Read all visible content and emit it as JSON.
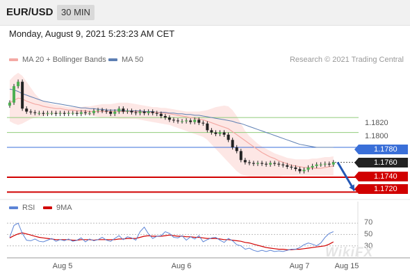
{
  "header": {
    "symbol": "EUR/USD",
    "timeframe": "30 MIN"
  },
  "datetime": "Monday, August 9, 2021 5:23:23 AM CET",
  "copyright": "Research © 2021 Trading Central",
  "colors": {
    "ma20": "#f4a9a4",
    "band": "#fde3e1",
    "ma50": "#5d7fb3",
    "resistance": "#8fcc7a",
    "pivot": "#3a6fd8",
    "support": "#d10000",
    "candle": "#222222",
    "rsi": "#5c84d6",
    "rsi_ma": "#d10000"
  },
  "watermark": "WikiFX",
  "chart_data": [
    {
      "type": "candlestick",
      "title": "",
      "legend": [
        "MA 20 + Bollinger Bands",
        "MA 50"
      ],
      "legend_position": "top-left",
      "x_ticks": [
        "Aug 5",
        "Aug 6",
        "Aug 7",
        "Aug 15"
      ],
      "levels": [
        {
          "value": 1.182,
          "label": "1.1820",
          "kind": "resistance"
        },
        {
          "value": 1.18,
          "label": "1.1800",
          "kind": "resistance"
        },
        {
          "value": 1.178,
          "label": "1.1780",
          "kind": "pivot"
        },
        {
          "value": 1.176,
          "label": "1.1760",
          "kind": "last"
        },
        {
          "value": 1.174,
          "label": "1.1740",
          "kind": "support"
        },
        {
          "value": 1.172,
          "label": "1.1720",
          "kind": "support"
        }
      ],
      "ylim": [
        1.1712,
        1.189
      ],
      "close": [
        1.184,
        1.1862,
        1.1868,
        1.1832,
        1.1828,
        1.1827,
        1.1826,
        1.1826,
        1.1825,
        1.1826,
        1.1826,
        1.1825,
        1.1826,
        1.1825,
        1.1826,
        1.1826,
        1.1825,
        1.1827,
        1.1826,
        1.1826,
        1.1829,
        1.183,
        1.1829,
        1.1828,
        1.1825,
        1.1828,
        1.1832,
        1.1828,
        1.1829,
        1.1827,
        1.1826,
        1.1828,
        1.1826,
        1.1828,
        1.1826,
        1.1825,
        1.1822,
        1.182,
        1.1817,
        1.1816,
        1.1815,
        1.1815,
        1.1816,
        1.1814,
        1.1817,
        1.1813,
        1.1812,
        1.1803,
        1.18,
        1.1798,
        1.18,
        1.1797,
        1.179,
        1.178,
        1.1775,
        1.1763,
        1.176,
        1.1759,
        1.1758,
        1.1759,
        1.1758,
        1.1757,
        1.1759,
        1.1758,
        1.1757,
        1.1756,
        1.1754,
        1.1753,
        1.1751,
        1.1748,
        1.175,
        1.1753,
        1.1755,
        1.1757,
        1.1757,
        1.1758,
        1.1757,
        1.176
      ],
      "ma20": [
        1.184,
        1.1843,
        1.1846,
        1.1845,
        1.1842,
        1.184,
        1.1838,
        1.1837,
        1.1835,
        1.1834,
        1.1833,
        1.1832,
        1.1832,
        1.1831,
        1.183,
        1.183,
        1.1829,
        1.1829,
        1.1829,
        1.1828,
        1.1828,
        1.1828,
        1.1828,
        1.1828,
        1.1828,
        1.1828,
        1.1828,
        1.1828,
        1.1828,
        1.1828,
        1.1828,
        1.1828,
        1.1827,
        1.1827,
        1.1827,
        1.1827,
        1.1826,
        1.1826,
        1.1825,
        1.1824,
        1.1823,
        1.1822,
        1.1821,
        1.182,
        1.1819,
        1.1818,
        1.1817,
        1.1815,
        1.1813,
        1.1811,
        1.1809,
        1.1807,
        1.1805,
        1.1801,
        1.1797,
        1.1793,
        1.1789,
        1.1785,
        1.1781,
        1.1777,
        1.1773,
        1.177,
        1.1767,
        1.1765,
        1.1762,
        1.176,
        1.1758,
        1.1756,
        1.1755,
        1.1754,
        1.1753,
        1.1753,
        1.1752,
        1.1752,
        1.1752,
        1.1753,
        1.1754,
        1.1755
      ],
      "ma50": [
        1.1858,
        1.1857,
        1.1855,
        1.1852,
        1.185,
        1.1848,
        1.1846,
        1.1844,
        1.1842,
        1.1841,
        1.184,
        1.1839,
        1.1838,
        1.1837,
        1.1836,
        1.1835,
        1.1834,
        1.1833,
        1.1833,
        1.1832,
        1.1832,
        1.1831,
        1.1831,
        1.183,
        1.183,
        1.183,
        1.183,
        1.1829,
        1.1829,
        1.1829,
        1.1829,
        1.1829,
        1.1828,
        1.1828,
        1.1828,
        1.1827,
        1.1827,
        1.1827,
        1.1826,
        1.1826,
        1.1825,
        1.1825,
        1.1824,
        1.1824,
        1.1823,
        1.1823,
        1.1822,
        1.1821,
        1.182,
        1.1819,
        1.1818,
        1.1817,
        1.1816,
        1.1815,
        1.1813,
        1.1812,
        1.181,
        1.1808,
        1.1806,
        1.1804,
        1.1802,
        1.18,
        1.1798,
        1.1796,
        1.1794,
        1.1792,
        1.179,
        1.1788,
        1.1786,
        1.1784,
        1.1783,
        1.1782,
        1.1781,
        1.178,
        1.178,
        1.178,
        1.178,
        1.178
      ],
      "band_upper": [
        1.187,
        1.1876,
        1.188,
        1.1876,
        1.1868,
        1.186,
        1.1852,
        1.1846,
        1.1842,
        1.184,
        1.1838,
        1.1837,
        1.1836,
        1.1835,
        1.1834,
        1.1834,
        1.1834,
        1.1834,
        1.1835,
        1.1835,
        1.1836,
        1.1837,
        1.1838,
        1.1838,
        1.1838,
        1.1839,
        1.184,
        1.184,
        1.184,
        1.1839,
        1.1838,
        1.1837,
        1.1836,
        1.1835,
        1.1834,
        1.1834,
        1.1833,
        1.1833,
        1.1832,
        1.1831,
        1.183,
        1.1829,
        1.1828,
        1.1828,
        1.1828,
        1.1828,
        1.1829,
        1.183,
        1.1832,
        1.1834,
        1.1835,
        1.1836,
        1.1835,
        1.183,
        1.1822,
        1.1812,
        1.1802,
        1.1795,
        1.179,
        1.1785,
        1.1781,
        1.1778,
        1.1775,
        1.1772,
        1.177,
        1.1768,
        1.1766,
        1.1765,
        1.1764,
        1.1764,
        1.1764,
        1.1764,
        1.1765,
        1.1765,
        1.1766,
        1.1767,
        1.1767,
        1.1768
      ],
      "band_lower": [
        1.1815,
        1.1812,
        1.181,
        1.1812,
        1.1815,
        1.1818,
        1.182,
        1.1821,
        1.1822,
        1.1823,
        1.1824,
        1.1825,
        1.1825,
        1.1825,
        1.1825,
        1.1825,
        1.1825,
        1.1824,
        1.1824,
        1.1823,
        1.1822,
        1.1821,
        1.182,
        1.182,
        1.1819,
        1.1819,
        1.1818,
        1.1818,
        1.1818,
        1.1818,
        1.1818,
        1.1817,
        1.1816,
        1.1815,
        1.1814,
        1.1813,
        1.1812,
        1.1811,
        1.181,
        1.1808,
        1.1806,
        1.1804,
        1.1802,
        1.18,
        1.1798,
        1.1796,
        1.1794,
        1.179,
        1.1784,
        1.1778,
        1.1772,
        1.1766,
        1.176,
        1.1754,
        1.1748,
        1.1744,
        1.1742,
        1.1741,
        1.174,
        1.174,
        1.174,
        1.174,
        1.174,
        1.1741,
        1.1741,
        1.1742,
        1.1742,
        1.1742,
        1.1742,
        1.1742,
        1.1742,
        1.1742,
        1.1742,
        1.1742,
        1.1742,
        1.1742,
        1.1742,
        1.1742
      ],
      "forecast_arrow": {
        "from": 1.176,
        "to": 1.1722
      }
    },
    {
      "type": "line",
      "title": "",
      "legend": [
        "RSI",
        "9MA"
      ],
      "legend_position": "top-left",
      "y_ticks": [
        70,
        50,
        30
      ],
      "ylim": [
        10,
        80
      ],
      "rsi": [
        45,
        66,
        70,
        52,
        40,
        39,
        42,
        38,
        37,
        40,
        43,
        38,
        41,
        39,
        42,
        38,
        40,
        44,
        37,
        42,
        39,
        41,
        45,
        40,
        38,
        43,
        48,
        41,
        46,
        44,
        40,
        55,
        63,
        51,
        43,
        47,
        48,
        55,
        52,
        45,
        44,
        48,
        40,
        46,
        42,
        48,
        37,
        41,
        44,
        45,
        40,
        36,
        43,
        39,
        32,
        30,
        24,
        26,
        22,
        20,
        22,
        20,
        22,
        20,
        21,
        20,
        22,
        24,
        24,
        27,
        32,
        35,
        33,
        30,
        35,
        45,
        52,
        55
      ],
      "rsi_ma": [
        44,
        48,
        51,
        53,
        51,
        49,
        47,
        45,
        44,
        43,
        42,
        41,
        41,
        41,
        41,
        40,
        40,
        41,
        41,
        41,
        40,
        41,
        41,
        41,
        41,
        41,
        42,
        42,
        43,
        43,
        43,
        45,
        47,
        48,
        47,
        47,
        47,
        48,
        49,
        48,
        47,
        47,
        46,
        46,
        45,
        45,
        44,
        43,
        43,
        43,
        42,
        41,
        41,
        40,
        39,
        38,
        36,
        35,
        33,
        31,
        29,
        27,
        26,
        25,
        24,
        24,
        23,
        23,
        24,
        24,
        25,
        26,
        27,
        28,
        29,
        30,
        33,
        37
      ]
    }
  ]
}
